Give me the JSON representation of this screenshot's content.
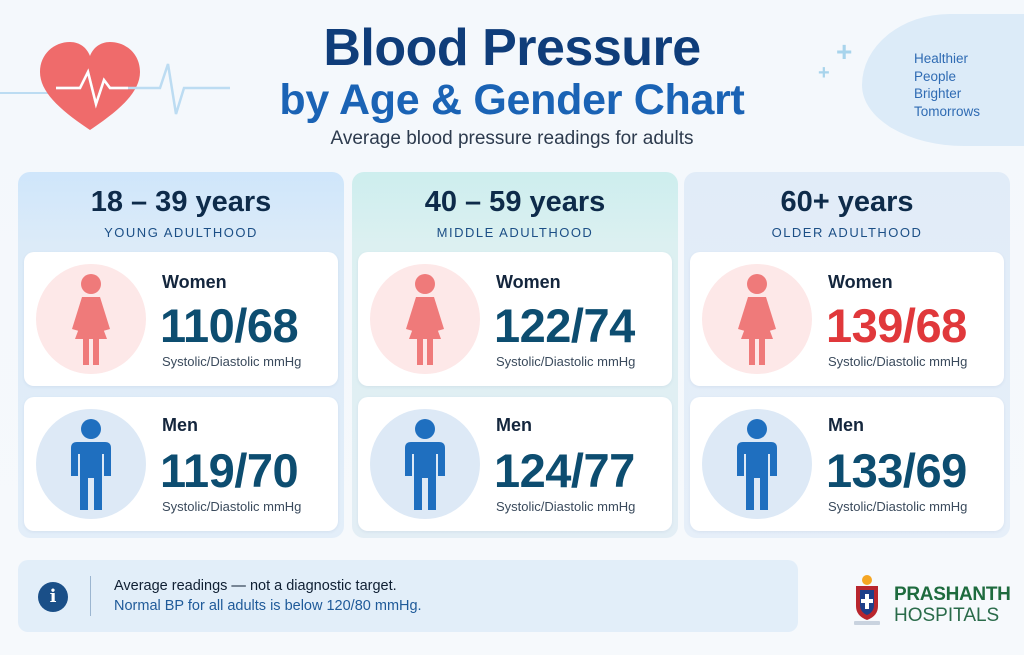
{
  "header": {
    "title_line1": "Blood Pressure",
    "title_line2": "by Age & Gender Chart",
    "subtitle": "Average blood pressure readings for adults",
    "tagline": [
      "Healthier",
      "People",
      "Brighter",
      "Tomorrows"
    ]
  },
  "groups": [
    {
      "age": "18 – 39 years",
      "stage": "YOUNG ADULTHOOD",
      "women": {
        "label": "Women",
        "reading": "110/68",
        "unit": "Systolic/Diastolic mmHg"
      },
      "men": {
        "label": "Men",
        "reading": "119/70",
        "unit": "Systolic/Diastolic mmHg"
      }
    },
    {
      "age": "40 – 59 years",
      "stage": "MIDDLE ADULTHOOD",
      "women": {
        "label": "Women",
        "reading": "122/74",
        "unit": "Systolic/Diastolic mmHg"
      },
      "men": {
        "label": "Men",
        "reading": "124/77",
        "unit": "Systolic/Diastolic mmHg"
      }
    },
    {
      "age": "60+ years",
      "stage": "OLDER ADULTHOOD",
      "women": {
        "label": "Women",
        "reading": "139/68",
        "unit": "Systolic/Diastolic mmHg"
      },
      "men": {
        "label": "Men",
        "reading": "133/69",
        "unit": "Systolic/Diastolic mmHg"
      }
    }
  ],
  "note": {
    "line1": "Average readings — not a diagnostic target.",
    "line2": "Normal BP for all adults is below 120/80 mmHg."
  },
  "brand": {
    "line1": "PRASHANTH",
    "line2": "HOSPITALS"
  },
  "colors": {
    "title_dark": "#0f3d7a",
    "title_blue": "#1a63b5",
    "reading": "#0d4d70",
    "reading_alert": "#e0383b",
    "women_icon": "#ef7a7a",
    "men_icon": "#1f6fbf"
  },
  "icons": {
    "heart": "heart-pulse-icon",
    "women": "woman-figure-icon",
    "men": "man-figure-icon",
    "info": "info-icon"
  }
}
